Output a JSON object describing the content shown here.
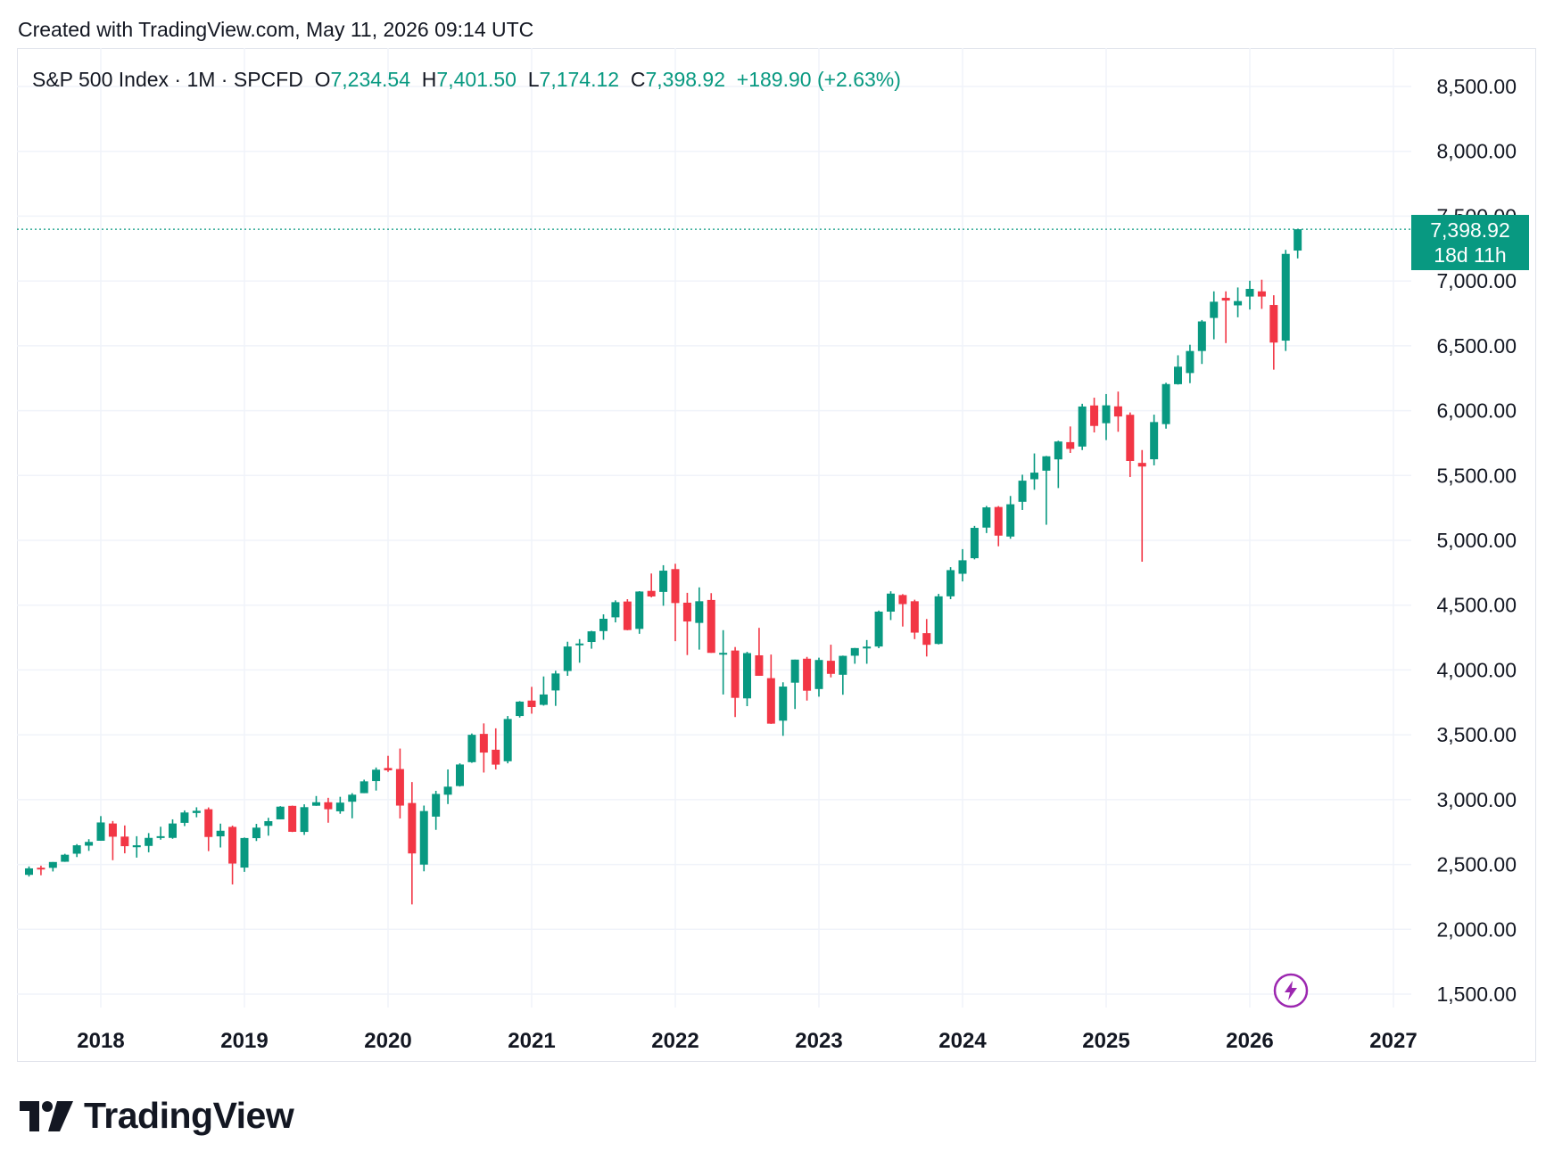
{
  "header": {
    "created_text": "Created with TradingView.com, May 11, 2026 09:14 UTC"
  },
  "legend": {
    "symbol": "S&P 500 Index · 1M · SPCFD",
    "open_label": "O",
    "open": "7,234.54",
    "high_label": "H",
    "high": "7,401.50",
    "low_label": "L",
    "low": "7,174.12",
    "close_label": "C",
    "close": "7,398.92",
    "change": "+189.90 (+2.63%)"
  },
  "price_tag": {
    "price": "7,398.92",
    "countdown": "18d 11h"
  },
  "logo": {
    "text": "TradingView"
  },
  "icons": {
    "logo": "tradingview-logo-icon",
    "bolt": "lightning-bolt-icon"
  },
  "colors": {
    "up": "#089981",
    "down": "#f23645",
    "grid": "#f0f3fa",
    "text": "#131722",
    "bolt": "#9c27b0"
  },
  "chart_data": {
    "type": "candlestick",
    "title": "S&P 500 Index · 1M · SPCFD",
    "interval": "1M",
    "y_ticks": [
      "1,500.00",
      "2,000.00",
      "2,500.00",
      "3,000.00",
      "3,500.00",
      "4,000.00",
      "4,500.00",
      "5,000.00",
      "5,500.00",
      "6,000.00",
      "6,500.00",
      "7,000.00",
      "7,500.00",
      "8,000.00",
      "8,500.00"
    ],
    "x_ticks": [
      "2018",
      "2019",
      "2020",
      "2021",
      "2022",
      "2023",
      "2024",
      "2025",
      "2026",
      "2027"
    ],
    "ylim": [
      1400,
      8650
    ],
    "x_range": [
      "2017-06",
      "2027-01"
    ],
    "last_price": 7398.92,
    "grid": true,
    "candles": [
      {
        "t": "2017-07",
        "o": 2420,
        "h": 2485,
        "l": 2407,
        "c": 2470
      },
      {
        "t": "2017-08",
        "o": 2475,
        "h": 2491,
        "l": 2417,
        "c": 2472
      },
      {
        "t": "2017-09",
        "o": 2474,
        "h": 2519,
        "l": 2446,
        "c": 2519
      },
      {
        "t": "2017-10",
        "o": 2521,
        "h": 2582,
        "l": 2520,
        "c": 2575
      },
      {
        "t": "2017-11",
        "o": 2583,
        "h": 2657,
        "l": 2557,
        "c": 2648
      },
      {
        "t": "2017-12",
        "o": 2645,
        "h": 2695,
        "l": 2605,
        "c": 2674
      },
      {
        "t": "2018-01",
        "o": 2683,
        "h": 2873,
        "l": 2683,
        "c": 2824
      },
      {
        "t": "2018-02",
        "o": 2816,
        "h": 2835,
        "l": 2533,
        "c": 2714
      },
      {
        "t": "2018-03",
        "o": 2715,
        "h": 2801,
        "l": 2586,
        "c": 2641
      },
      {
        "t": "2018-04",
        "o": 2633,
        "h": 2718,
        "l": 2553,
        "c": 2648
      },
      {
        "t": "2018-05",
        "o": 2643,
        "h": 2742,
        "l": 2594,
        "c": 2705
      },
      {
        "t": "2018-06",
        "o": 2718,
        "h": 2791,
        "l": 2691,
        "c": 2718
      },
      {
        "t": "2018-07",
        "o": 2705,
        "h": 2848,
        "l": 2698,
        "c": 2816
      },
      {
        "t": "2018-08",
        "o": 2821,
        "h": 2917,
        "l": 2796,
        "c": 2901
      },
      {
        "t": "2018-09",
        "o": 2897,
        "h": 2941,
        "l": 2864,
        "c": 2914
      },
      {
        "t": "2018-10",
        "o": 2926,
        "h": 2940,
        "l": 2603,
        "c": 2712
      },
      {
        "t": "2018-11",
        "o": 2717,
        "h": 2815,
        "l": 2631,
        "c": 2760
      },
      {
        "t": "2018-12",
        "o": 2790,
        "h": 2800,
        "l": 2346,
        "c": 2507
      },
      {
        "t": "2019-01",
        "o": 2476,
        "h": 2708,
        "l": 2443,
        "c": 2704
      },
      {
        "t": "2019-02",
        "o": 2703,
        "h": 2813,
        "l": 2681,
        "c": 2784
      },
      {
        "t": "2019-03",
        "o": 2798,
        "h": 2860,
        "l": 2722,
        "c": 2834
      },
      {
        "t": "2019-04",
        "o": 2848,
        "h": 2950,
        "l": 2848,
        "c": 2946
      },
      {
        "t": "2019-05",
        "o": 2952,
        "h": 2954,
        "l": 2750,
        "c": 2752
      },
      {
        "t": "2019-06",
        "o": 2751,
        "h": 2964,
        "l": 2728,
        "c": 2942
      },
      {
        "t": "2019-07",
        "o": 2953,
        "h": 3028,
        "l": 2952,
        "c": 2980
      },
      {
        "t": "2019-08",
        "o": 2980,
        "h": 3014,
        "l": 2822,
        "c": 2926
      },
      {
        "t": "2019-09",
        "o": 2910,
        "h": 3022,
        "l": 2891,
        "c": 2977
      },
      {
        "t": "2019-10",
        "o": 2984,
        "h": 3050,
        "l": 2856,
        "c": 3038
      },
      {
        "t": "2019-11",
        "o": 3050,
        "h": 3154,
        "l": 3050,
        "c": 3141
      },
      {
        "t": "2019-12",
        "o": 3143,
        "h": 3248,
        "l": 3070,
        "c": 3231
      },
      {
        "t": "2020-01",
        "o": 3244,
        "h": 3338,
        "l": 3214,
        "c": 3226
      },
      {
        "t": "2020-02",
        "o": 3236,
        "h": 3394,
        "l": 2855,
        "c": 2954
      },
      {
        "t": "2020-03",
        "o": 2974,
        "h": 3136,
        "l": 2192,
        "c": 2585
      },
      {
        "t": "2020-04",
        "o": 2499,
        "h": 2954,
        "l": 2447,
        "c": 2912
      },
      {
        "t": "2020-05",
        "o": 2869,
        "h": 3068,
        "l": 2767,
        "c": 3044
      },
      {
        "t": "2020-06",
        "o": 3038,
        "h": 3233,
        "l": 2966,
        "c": 3100
      },
      {
        "t": "2020-07",
        "o": 3105,
        "h": 3280,
        "l": 3101,
        "c": 3271
      },
      {
        "t": "2020-08",
        "o": 3289,
        "h": 3510,
        "l": 3284,
        "c": 3500
      },
      {
        "t": "2020-09",
        "o": 3507,
        "h": 3588,
        "l": 3209,
        "c": 3363
      },
      {
        "t": "2020-10",
        "o": 3385,
        "h": 3550,
        "l": 3233,
        "c": 3270
      },
      {
        "t": "2020-11",
        "o": 3296,
        "h": 3645,
        "l": 3280,
        "c": 3622
      },
      {
        "t": "2020-12",
        "o": 3645,
        "h": 3760,
        "l": 3633,
        "c": 3756
      },
      {
        "t": "2021-01",
        "o": 3764,
        "h": 3870,
        "l": 3663,
        "c": 3714
      },
      {
        "t": "2021-02",
        "o": 3731,
        "h": 3950,
        "l": 3725,
        "c": 3811
      },
      {
        "t": "2021-03",
        "o": 3842,
        "h": 3994,
        "l": 3723,
        "c": 3973
      },
      {
        "t": "2021-04",
        "o": 3992,
        "h": 4218,
        "l": 3955,
        "c": 4181
      },
      {
        "t": "2021-05",
        "o": 4192,
        "h": 4238,
        "l": 4056,
        "c": 4204
      },
      {
        "t": "2021-06",
        "o": 4216,
        "h": 4302,
        "l": 4164,
        "c": 4298
      },
      {
        "t": "2021-07",
        "o": 4300,
        "h": 4429,
        "l": 4233,
        "c": 4395
      },
      {
        "t": "2021-08",
        "o": 4406,
        "h": 4537,
        "l": 4367,
        "c": 4523
      },
      {
        "t": "2021-09",
        "o": 4528,
        "h": 4546,
        "l": 4306,
        "c": 4308
      },
      {
        "t": "2021-10",
        "o": 4317,
        "h": 4608,
        "l": 4279,
        "c": 4605
      },
      {
        "t": "2021-11",
        "o": 4610,
        "h": 4744,
        "l": 4560,
        "c": 4567
      },
      {
        "t": "2021-12",
        "o": 4602,
        "h": 4808,
        "l": 4495,
        "c": 4766
      },
      {
        "t": "2022-01",
        "o": 4778,
        "h": 4819,
        "l": 4222,
        "c": 4516
      },
      {
        "t": "2022-02",
        "o": 4519,
        "h": 4595,
        "l": 4115,
        "c": 4374
      },
      {
        "t": "2022-03",
        "o": 4363,
        "h": 4637,
        "l": 4157,
        "c": 4530
      },
      {
        "t": "2022-04",
        "o": 4540,
        "h": 4593,
        "l": 4132,
        "c": 4132
      },
      {
        "t": "2022-05",
        "o": 4131,
        "h": 4307,
        "l": 3811,
        "c": 4132
      },
      {
        "t": "2022-06",
        "o": 4150,
        "h": 4177,
        "l": 3637,
        "c": 3785
      },
      {
        "t": "2022-07",
        "o": 3781,
        "h": 4140,
        "l": 3721,
        "c": 4130
      },
      {
        "t": "2022-08",
        "o": 4113,
        "h": 4325,
        "l": 3955,
        "c": 3955
      },
      {
        "t": "2022-09",
        "o": 3937,
        "h": 4119,
        "l": 3584,
        "c": 3586
      },
      {
        "t": "2022-10",
        "o": 3609,
        "h": 3905,
        "l": 3492,
        "c": 3872
      },
      {
        "t": "2022-11",
        "o": 3902,
        "h": 4080,
        "l": 3699,
        "c": 4080
      },
      {
        "t": "2022-12",
        "o": 4087,
        "h": 4101,
        "l": 3764,
        "c": 3840
      },
      {
        "t": "2023-01",
        "o": 3853,
        "h": 4095,
        "l": 3794,
        "c": 4077
      },
      {
        "t": "2023-02",
        "o": 4071,
        "h": 4195,
        "l": 3943,
        "c": 3970
      },
      {
        "t": "2023-03",
        "o": 3963,
        "h": 4111,
        "l": 3809,
        "c": 4109
      },
      {
        "t": "2023-04",
        "o": 4110,
        "h": 4170,
        "l": 4048,
        "c": 4169
      },
      {
        "t": "2023-05",
        "o": 4166,
        "h": 4231,
        "l": 4048,
        "c": 4180
      },
      {
        "t": "2023-06",
        "o": 4181,
        "h": 4458,
        "l": 4168,
        "c": 4450
      },
      {
        "t": "2023-07",
        "o": 4450,
        "h": 4607,
        "l": 4385,
        "c": 4589
      },
      {
        "t": "2023-08",
        "o": 4578,
        "h": 4585,
        "l": 4335,
        "c": 4508
      },
      {
        "t": "2023-09",
        "o": 4530,
        "h": 4542,
        "l": 4238,
        "c": 4288
      },
      {
        "t": "2023-10",
        "o": 4284,
        "h": 4393,
        "l": 4104,
        "c": 4194
      },
      {
        "t": "2023-11",
        "o": 4201,
        "h": 4587,
        "l": 4197,
        "c": 4568
      },
      {
        "t": "2023-12",
        "o": 4568,
        "h": 4793,
        "l": 4546,
        "c": 4770
      },
      {
        "t": "2024-01",
        "o": 4742,
        "h": 4932,
        "l": 4683,
        "c": 4846
      },
      {
        "t": "2024-02",
        "o": 4862,
        "h": 5111,
        "l": 4853,
        "c": 5096
      },
      {
        "t": "2024-03",
        "o": 5098,
        "h": 5265,
        "l": 5056,
        "c": 5254
      },
      {
        "t": "2024-04",
        "o": 5257,
        "h": 5264,
        "l": 4954,
        "c": 5036
      },
      {
        "t": "2024-05",
        "o": 5029,
        "h": 5342,
        "l": 5012,
        "c": 5278
      },
      {
        "t": "2024-06",
        "o": 5297,
        "h": 5506,
        "l": 5234,
        "c": 5460
      },
      {
        "t": "2024-07",
        "o": 5471,
        "h": 5670,
        "l": 5390,
        "c": 5522
      },
      {
        "t": "2024-08",
        "o": 5537,
        "h": 5651,
        "l": 5120,
        "c": 5648
      },
      {
        "t": "2024-09",
        "o": 5624,
        "h": 5768,
        "l": 5403,
        "c": 5762
      },
      {
        "t": "2024-10",
        "o": 5757,
        "h": 5878,
        "l": 5674,
        "c": 5705
      },
      {
        "t": "2024-11",
        "o": 5723,
        "h": 6053,
        "l": 5696,
        "c": 6032
      },
      {
        "t": "2024-12",
        "o": 6040,
        "h": 6100,
        "l": 5832,
        "c": 5882
      },
      {
        "t": "2025-01",
        "o": 5903,
        "h": 6128,
        "l": 5773,
        "c": 6041
      },
      {
        "t": "2025-02",
        "o": 6033,
        "h": 6147,
        "l": 5837,
        "c": 5955
      },
      {
        "t": "2025-03",
        "o": 5968,
        "h": 5986,
        "l": 5488,
        "c": 5612
      },
      {
        "t": "2025-04",
        "o": 5597,
        "h": 5696,
        "l": 4835,
        "c": 5569
      },
      {
        "t": "2025-05",
        "o": 5625,
        "h": 5969,
        "l": 5578,
        "c": 5912
      },
      {
        "t": "2025-06",
        "o": 5896,
        "h": 6215,
        "l": 5861,
        "c": 6205
      },
      {
        "t": "2025-07",
        "o": 6204,
        "h": 6427,
        "l": 6201,
        "c": 6339
      },
      {
        "t": "2025-08",
        "o": 6290,
        "h": 6508,
        "l": 6212,
        "c": 6460
      },
      {
        "t": "2025-09",
        "o": 6460,
        "h": 6699,
        "l": 6360,
        "c": 6688
      },
      {
        "t": "2025-10",
        "o": 6715,
        "h": 6920,
        "l": 6550,
        "c": 6840
      },
      {
        "t": "2025-11",
        "o": 6870,
        "h": 6920,
        "l": 6521,
        "c": 6849
      },
      {
        "t": "2025-12",
        "o": 6812,
        "h": 6950,
        "l": 6720,
        "c": 6845
      },
      {
        "t": "2026-01",
        "o": 6880,
        "h": 7002,
        "l": 6780,
        "c": 6939
      },
      {
        "t": "2026-02",
        "o": 6920,
        "h": 7010,
        "l": 6785,
        "c": 6880
      },
      {
        "t": "2026-03",
        "o": 6815,
        "h": 6890,
        "l": 6316,
        "c": 6525
      },
      {
        "t": "2026-04",
        "o": 6540,
        "h": 7240,
        "l": 6460,
        "c": 7209
      },
      {
        "t": "2026-05",
        "o": 7234.54,
        "h": 7401.5,
        "l": 7174.12,
        "c": 7398.92
      }
    ]
  }
}
